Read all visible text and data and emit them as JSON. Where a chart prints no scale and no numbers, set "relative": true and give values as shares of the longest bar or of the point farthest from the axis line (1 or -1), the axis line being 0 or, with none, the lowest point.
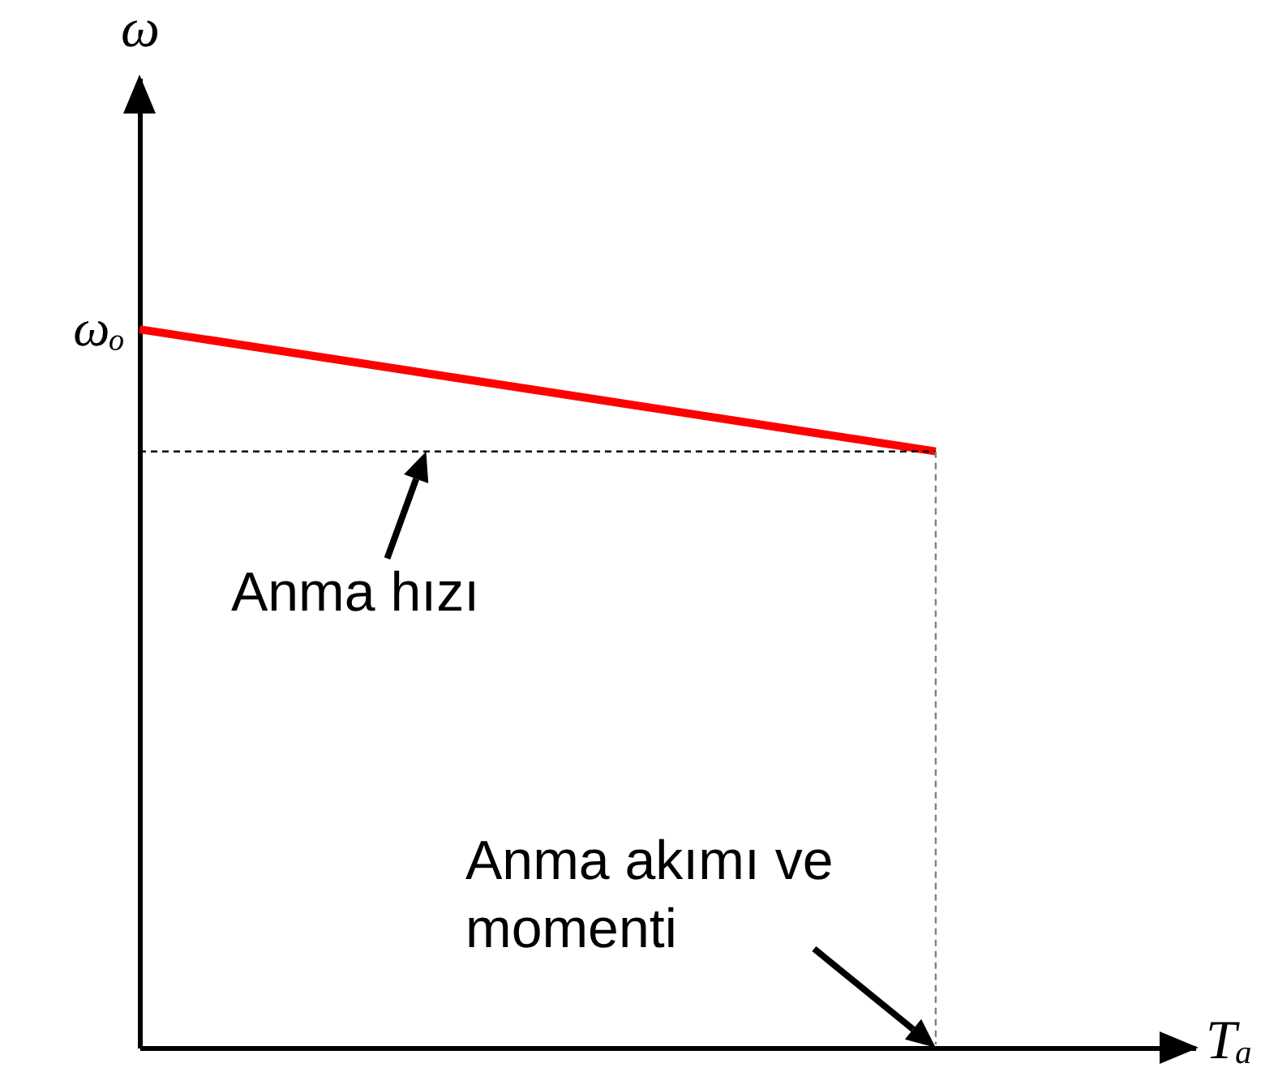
{
  "chart_data": {
    "type": "line",
    "categories": [
      null,
      null
    ],
    "relative": true,
    "series": [
      {
        "color": "#ff0000",
        "values": [
          1,
          0.83
        ]
      }
    ],
    "xlabel": "Tₐ",
    "ylabel": "ω",
    "ref_lines": [
      {
        "axis": "y",
        "value": 0.83,
        "color": "#000000",
        "line_style": "dashed"
      }
    ],
    "annotations": [
      {
        "text": "Anma hızı",
        "y": 0.83
      },
      "Anma akımı ve momenti",
      "ωₒ"
    ]
  }
}
